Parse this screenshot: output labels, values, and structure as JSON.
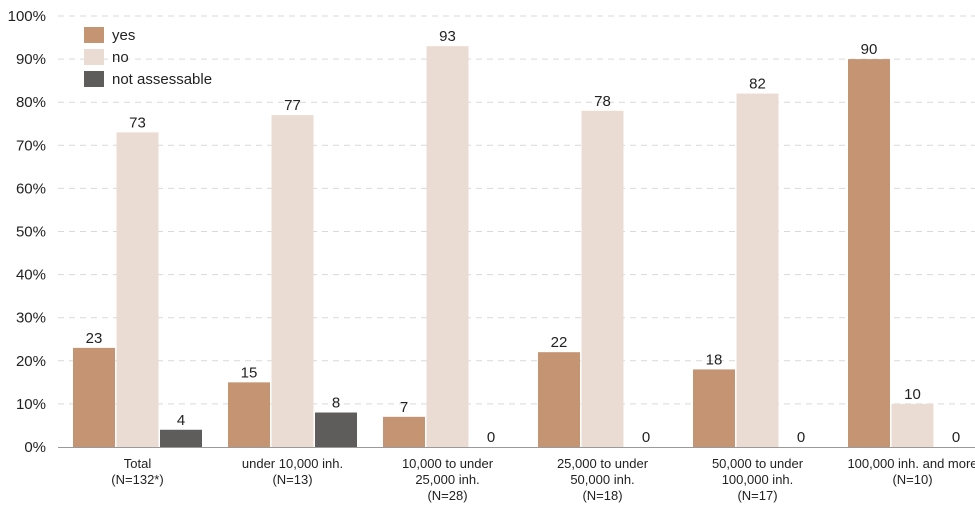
{
  "chart_data": {
    "type": "bar",
    "categories": [
      [
        "Total",
        "(N=132*)"
      ],
      [
        "under 10,000 inh.",
        "(N=13)"
      ],
      [
        "10,000 to under",
        "25,000 inh.",
        "(N=28)"
      ],
      [
        "25,000 to under",
        "50,000 inh.",
        "(N=18)"
      ],
      [
        "50,000 to under",
        "100,000 inh.",
        "(N=17)"
      ],
      [
        "100,000 inh. and more",
        "(N=10)"
      ]
    ],
    "series": [
      {
        "name": "yes",
        "color": "#c59472",
        "values": [
          23,
          15,
          7,
          22,
          18,
          90
        ],
        "labels": [
          "23",
          "15",
          "7",
          "22",
          "18",
          "90"
        ]
      },
      {
        "name": "no",
        "color": "#ebdcd3",
        "values": [
          73,
          77,
          93,
          78,
          82,
          10
        ],
        "labels": [
          "73",
          "77",
          "93",
          "78",
          "82",
          "10"
        ]
      },
      {
        "name": "not assessable",
        "color": "#5e5d5b",
        "values": [
          4,
          8,
          0,
          0,
          0,
          0
        ],
        "labels": [
          "4",
          "8",
          "0",
          "0",
          "0",
          "0"
        ]
      }
    ],
    "yticks": [
      "0%",
      "10%",
      "20%",
      "30%",
      "40%",
      "50%",
      "60%",
      "70%",
      "80%",
      "90%",
      "100%"
    ],
    "ylim": [
      0,
      100
    ],
    "grid": true,
    "legend_position": "top-left",
    "title": "",
    "xlabel": "",
    "ylabel": ""
  }
}
